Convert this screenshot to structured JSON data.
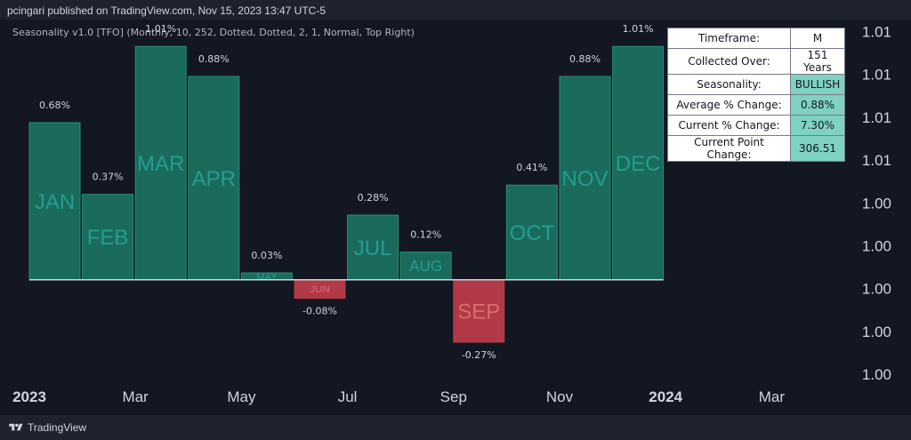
{
  "header": {
    "published_text": "pcingari published on TradingView.com, Nov 15, 2023 13:47 UTC-5"
  },
  "indicator": {
    "label": "Seasonality v1.0 [TFO] (Monthly, 10, 252, Dotted, Dotted, 2, 1, Normal, Top Right)"
  },
  "footer": {
    "logo_text": "TradingView",
    "logo_icon": "tradingview-logo-icon"
  },
  "stats_table": [
    {
      "label": "Timeframe:",
      "value": "M",
      "highlight": false
    },
    {
      "label": "Collected Over:",
      "value": "151 Years",
      "highlight": false
    },
    {
      "label": "Seasonality:",
      "value": "BULLISH",
      "highlight": true
    },
    {
      "label": "Average % Change:",
      "value": "0.88%",
      "highlight": true
    },
    {
      "label": "Current % Change:",
      "value": "7.30%",
      "highlight": true
    },
    {
      "label": "Current Point Change:",
      "value": "306.51",
      "highlight": true
    }
  ],
  "colors": {
    "positive": "#1a6b5c",
    "positive_border": "#2a8c78",
    "negative": "#b23a48",
    "month_text_pos": "#26a69a",
    "month_text_neg": "#ef5350",
    "baseline": "#d1d4dc"
  },
  "chart_data": {
    "type": "bar",
    "categories": [
      "JAN",
      "FEB",
      "MAR",
      "APR",
      "MAY",
      "JUN",
      "JUL",
      "AUG",
      "SEP",
      "OCT",
      "NOV",
      "DEC"
    ],
    "values": [
      0.68,
      0.37,
      1.01,
      0.88,
      0.03,
      -0.08,
      0.28,
      0.12,
      -0.27,
      0.41,
      0.88,
      1.01
    ],
    "data_labels": [
      "0.68%",
      "0.37%",
      "1.01%",
      "0.88%",
      "0.03%",
      "-0.08%",
      "0.28%",
      "0.12%",
      "-0.27%",
      "0.41%",
      "0.88%",
      "1.01%"
    ],
    "unit": "%",
    "ylim": [
      -0.42,
      1.08
    ],
    "x_tick_labels": [
      {
        "text": "2023",
        "bold": true,
        "month_index": 0
      },
      {
        "text": "Mar",
        "bold": false,
        "month_index": 2
      },
      {
        "text": "May",
        "bold": false,
        "month_index": 4
      },
      {
        "text": "Jul",
        "bold": false,
        "month_index": 6
      },
      {
        "text": "Sep",
        "bold": false,
        "month_index": 8
      },
      {
        "text": "Nov",
        "bold": false,
        "month_index": 10
      },
      {
        "text": "2024",
        "bold": true,
        "month_index": 12
      },
      {
        "text": "Mar",
        "bold": false,
        "month_index": 14
      }
    ],
    "y_tick_labels": [
      "1.01",
      "1.01",
      "1.01",
      "1.01",
      "1.00",
      "1.00",
      "1.00",
      "1.00",
      "1.00"
    ],
    "grid": false
  }
}
